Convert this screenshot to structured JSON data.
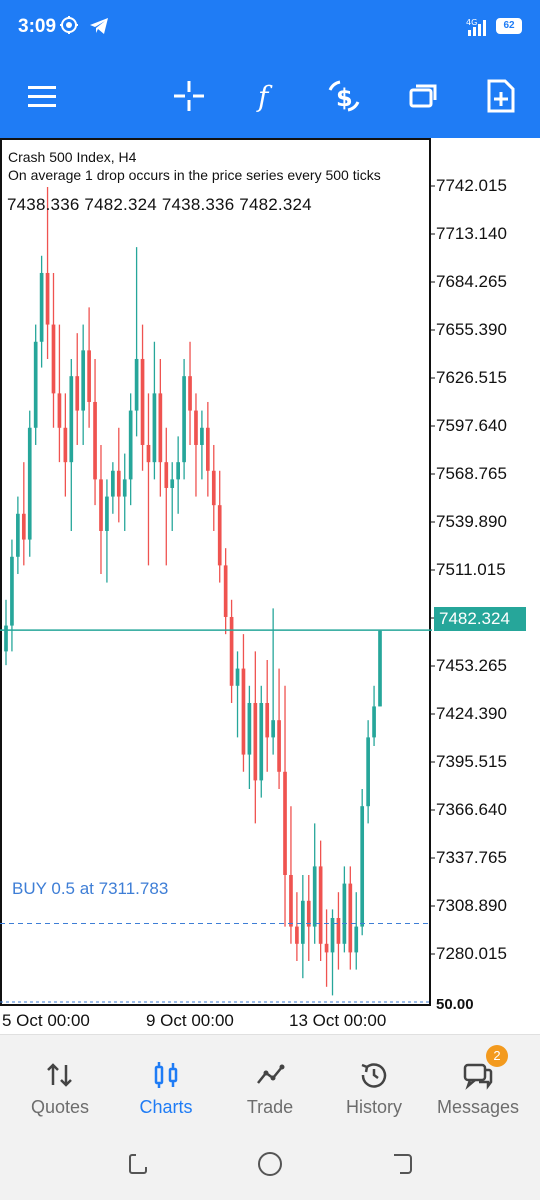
{
  "status_bar": {
    "time": "3:09",
    "signal_label": "4G",
    "battery": "62"
  },
  "toolbar": {
    "icons": [
      "menu-icon",
      "crosshair-icon",
      "indicators-icon",
      "trade-dollar-icon",
      "windows-icon",
      "new-order-icon"
    ]
  },
  "chart": {
    "symbol_line": "Crash 500 Index, H4",
    "description": "On average 1 drop occurs in the price series every 500 ticks",
    "ohlc": "7438.336 7482.324 7438.336 7482.324",
    "price_axis": [
      "7742.015",
      "7713.140",
      "7684.265",
      "7655.390",
      "7626.515",
      "7597.640",
      "7568.765",
      "7539.890",
      "7511.015",
      "7453.265",
      "7424.390",
      "7395.515",
      "7366.640",
      "7337.765",
      "7308.890",
      "7280.015"
    ],
    "current_price": "7482.324",
    "bottom_scale": "50.00",
    "buy_line_label": "BUY 0.5 at 7311.783",
    "time_axis": [
      "5 Oct 00:00",
      "9 Oct 00:00",
      "13 Oct 00:00"
    ],
    "colors": {
      "bull": "#26a69a",
      "bear": "#ef5350",
      "buy_line": "#3e7ed6",
      "bid_line": "#26a69a"
    }
  },
  "chart_data": {
    "type": "candlestick",
    "title": "Crash 500 Index, H4",
    "ylim": [
      7265,
      7758
    ],
    "x_labels": [
      "5 Oct 00:00",
      "9 Oct 00:00",
      "13 Oct 00:00"
    ],
    "candles": [
      {
        "o": 7470,
        "h": 7500,
        "l": 7462,
        "c": 7485
      },
      {
        "o": 7485,
        "h": 7535,
        "l": 7470,
        "c": 7525
      },
      {
        "o": 7525,
        "h": 7560,
        "l": 7515,
        "c": 7550
      },
      {
        "o": 7550,
        "h": 7580,
        "l": 7520,
        "c": 7535
      },
      {
        "o": 7535,
        "h": 7610,
        "l": 7525,
        "c": 7600
      },
      {
        "o": 7600,
        "h": 7660,
        "l": 7590,
        "c": 7650
      },
      {
        "o": 7650,
        "h": 7700,
        "l": 7635,
        "c": 7690
      },
      {
        "o": 7690,
        "h": 7740,
        "l": 7640,
        "c": 7660
      },
      {
        "o": 7660,
        "h": 7690,
        "l": 7600,
        "c": 7620
      },
      {
        "o": 7620,
        "h": 7660,
        "l": 7580,
        "c": 7600
      },
      {
        "o": 7600,
        "h": 7620,
        "l": 7560,
        "c": 7580
      },
      {
        "o": 7580,
        "h": 7640,
        "l": 7540,
        "c": 7630
      },
      {
        "o": 7630,
        "h": 7655,
        "l": 7590,
        "c": 7610
      },
      {
        "o": 7610,
        "h": 7660,
        "l": 7590,
        "c": 7645
      },
      {
        "o": 7645,
        "h": 7670,
        "l": 7600,
        "c": 7615
      },
      {
        "o": 7615,
        "h": 7640,
        "l": 7555,
        "c": 7570
      },
      {
        "o": 7570,
        "h": 7590,
        "l": 7515,
        "c": 7540
      },
      {
        "o": 7540,
        "h": 7570,
        "l": 7510,
        "c": 7560
      },
      {
        "o": 7560,
        "h": 7580,
        "l": 7550,
        "c": 7575
      },
      {
        "o": 7575,
        "h": 7600,
        "l": 7545,
        "c": 7560
      },
      {
        "o": 7560,
        "h": 7585,
        "l": 7540,
        "c": 7570
      },
      {
        "o": 7570,
        "h": 7620,
        "l": 7555,
        "c": 7610
      },
      {
        "o": 7610,
        "h": 7705,
        "l": 7595,
        "c": 7640
      },
      {
        "o": 7640,
        "h": 7660,
        "l": 7575,
        "c": 7590
      },
      {
        "o": 7590,
        "h": 7620,
        "l": 7520,
        "c": 7580
      },
      {
        "o": 7580,
        "h": 7650,
        "l": 7570,
        "c": 7620
      },
      {
        "o": 7620,
        "h": 7640,
        "l": 7560,
        "c": 7580
      },
      {
        "o": 7580,
        "h": 7600,
        "l": 7520,
        "c": 7565
      },
      {
        "o": 7565,
        "h": 7580,
        "l": 7540,
        "c": 7570
      },
      {
        "o": 7570,
        "h": 7595,
        "l": 7550,
        "c": 7580
      },
      {
        "o": 7580,
        "h": 7640,
        "l": 7570,
        "c": 7630
      },
      {
        "o": 7630,
        "h": 7650,
        "l": 7590,
        "c": 7610
      },
      {
        "o": 7610,
        "h": 7620,
        "l": 7560,
        "c": 7590
      },
      {
        "o": 7590,
        "h": 7610,
        "l": 7570,
        "c": 7600
      },
      {
        "o": 7600,
        "h": 7615,
        "l": 7560,
        "c": 7575
      },
      {
        "o": 7575,
        "h": 7590,
        "l": 7540,
        "c": 7555
      },
      {
        "o": 7555,
        "h": 7575,
        "l": 7510,
        "c": 7520
      },
      {
        "o": 7520,
        "h": 7530,
        "l": 7480,
        "c": 7490
      },
      {
        "o": 7490,
        "h": 7500,
        "l": 7440,
        "c": 7450
      },
      {
        "o": 7450,
        "h": 7470,
        "l": 7420,
        "c": 7460
      },
      {
        "o": 7460,
        "h": 7480,
        "l": 7400,
        "c": 7410
      },
      {
        "o": 7410,
        "h": 7450,
        "l": 7390,
        "c": 7440
      },
      {
        "o": 7440,
        "h": 7470,
        "l": 7370,
        "c": 7395
      },
      {
        "o": 7395,
        "h": 7450,
        "l": 7385,
        "c": 7440
      },
      {
        "o": 7440,
        "h": 7465,
        "l": 7400,
        "c": 7420
      },
      {
        "o": 7420,
        "h": 7495,
        "l": 7410,
        "c": 7430
      },
      {
        "o": 7430,
        "h": 7460,
        "l": 7390,
        "c": 7400
      },
      {
        "o": 7400,
        "h": 7450,
        "l": 7310,
        "c": 7340
      },
      {
        "o": 7340,
        "h": 7380,
        "l": 7300,
        "c": 7310
      },
      {
        "o": 7310,
        "h": 7330,
        "l": 7290,
        "c": 7300
      },
      {
        "o": 7300,
        "h": 7340,
        "l": 7280,
        "c": 7325
      },
      {
        "o": 7325,
        "h": 7340,
        "l": 7290,
        "c": 7310
      },
      {
        "o": 7310,
        "h": 7370,
        "l": 7300,
        "c": 7345
      },
      {
        "o": 7345,
        "h": 7360,
        "l": 7290,
        "c": 7300
      },
      {
        "o": 7300,
        "h": 7320,
        "l": 7275,
        "c": 7295
      },
      {
        "o": 7295,
        "h": 7320,
        "l": 7270,
        "c": 7315
      },
      {
        "o": 7315,
        "h": 7330,
        "l": 7285,
        "c": 7300
      },
      {
        "o": 7300,
        "h": 7345,
        "l": 7295,
        "c": 7335
      },
      {
        "o": 7335,
        "h": 7345,
        "l": 7285,
        "c": 7295
      },
      {
        "o": 7295,
        "h": 7330,
        "l": 7285,
        "c": 7310
      },
      {
        "o": 7310,
        "h": 7390,
        "l": 7305,
        "c": 7380
      },
      {
        "o": 7380,
        "h": 7430,
        "l": 7370,
        "c": 7420
      },
      {
        "o": 7420,
        "h": 7450,
        "l": 7415,
        "c": 7438
      },
      {
        "o": 7438,
        "h": 7482,
        "l": 7438,
        "c": 7482
      }
    ],
    "bid_line": 7482.324,
    "buy_line": 7311.783
  },
  "bottom_nav": {
    "items": [
      {
        "label": "Quotes"
      },
      {
        "label": "Charts"
      },
      {
        "label": "Trade"
      },
      {
        "label": "History"
      },
      {
        "label": "Messages"
      }
    ],
    "messages_badge": "2"
  }
}
